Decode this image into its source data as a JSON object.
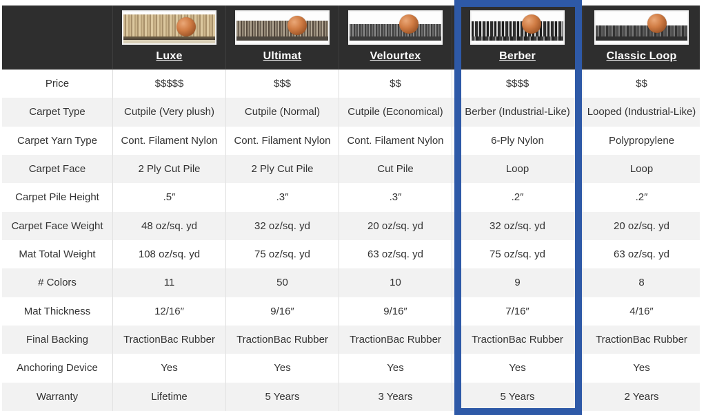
{
  "table": {
    "highlighted_product": "Berber",
    "products": [
      {
        "name": "Luxe",
        "image": "carpet-cross-section-with-penny-photo"
      },
      {
        "name": "Ultimat",
        "image": "carpet-cross-section-with-penny-photo"
      },
      {
        "name": "Velourtex",
        "image": "carpet-cross-section-with-penny-photo"
      },
      {
        "name": "Berber",
        "image": "carpet-cross-section-with-penny-photo"
      },
      {
        "name": "Classic Loop",
        "image": "carpet-cross-section-with-penny-photo"
      }
    ],
    "rows": [
      {
        "label": "Price",
        "values": [
          "$$$$$",
          "$$$",
          "$$",
          "$$$$",
          "$$"
        ]
      },
      {
        "label": "Carpet Type",
        "values": [
          "Cutpile (Very plush)",
          "Cutpile (Normal)",
          "Cutpile (Economical)",
          "Berber (Industrial-Like)",
          "Looped (Industrial-Like)"
        ]
      },
      {
        "label": "Carpet Yarn Type",
        "values": [
          "Cont. Filament Nylon",
          "Cont. Filament Nylon",
          "Cont. Filament Nylon",
          "6-Ply Nylon",
          "Polypropylene"
        ]
      },
      {
        "label": "Carpet Face",
        "values": [
          "2 Ply Cut Pile",
          "2 Ply Cut Pile",
          "Cut Pile",
          "Loop",
          "Loop"
        ]
      },
      {
        "label": "Carpet Pile Height",
        "values": [
          ".5″",
          ".3″",
          ".3″",
          ".2″",
          ".2″"
        ]
      },
      {
        "label": "Carpet Face Weight",
        "values": [
          "48 oz/sq. yd",
          "32 oz/sq. yd",
          "20 oz/sq. yd",
          "32 oz/sq. yd",
          "20 oz/sq. yd"
        ]
      },
      {
        "label": "Mat Total Weight",
        "values": [
          "108 oz/sq. yd",
          "75 oz/sq. yd",
          "63 oz/sq. yd",
          "75 oz/sq. yd",
          "63 oz/sq. yd"
        ]
      },
      {
        "label": "# Colors",
        "values": [
          "11",
          "50",
          "10",
          "9",
          "8"
        ]
      },
      {
        "label": "Mat Thickness",
        "values": [
          "12/16″",
          "9/16″",
          "9/16″",
          "7/16″",
          "4/16″"
        ]
      },
      {
        "label": "Final Backing",
        "values": [
          "TractionBac Rubber",
          "TractionBac Rubber",
          "TractionBac Rubber",
          "TractionBac Rubber",
          "TractionBac Rubber"
        ]
      },
      {
        "label": "Anchoring Device",
        "values": [
          "Yes",
          "Yes",
          "Yes",
          "Yes",
          "Yes"
        ]
      },
      {
        "label": "Warranty",
        "values": [
          "Lifetime",
          "5 Years",
          "3 Years",
          "5 Years",
          "2 Years"
        ]
      }
    ]
  },
  "colors": {
    "highlight_border": "#2e59a7",
    "header_bg": "#2e2e2e",
    "row_alt_bg": "#f2f2f2",
    "body_text": "#333333"
  }
}
